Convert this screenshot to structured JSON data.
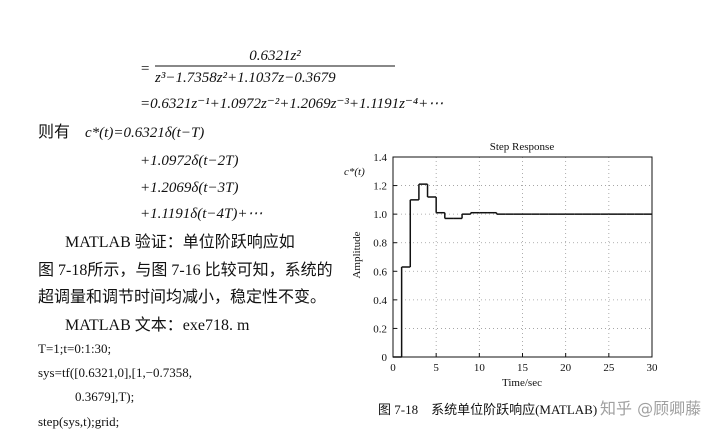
{
  "document": {
    "equation": {
      "equals": "=",
      "numerator": "0.6321z²",
      "denominator": "z³−1.7358z²+1.1037z−0.3679",
      "expansion": "=0.6321z⁻¹+1.0972z⁻²+1.2069z⁻³+1.1191z⁻⁴+⋯"
    },
    "then_label": "则有",
    "c_star": [
      "c*(t)=0.6321δ(t−T)",
      "+1.0972δ(t−2T)",
      "+1.2069δ(t−3T)",
      "+1.1191δ(t−4T)+⋯"
    ],
    "paragraph": [
      "MATLAB 验证：单位阶跃响应如",
      "图 7-18所示，与图 7-16 比较可知，系统的",
      "超调量和调节时间均减小，稳定性不变。"
    ],
    "code_title": "MATLAB 文本：exe718. m",
    "code": [
      "T=1;t=0:1:30;",
      "sys=tf([0.6321,0],[1,−0.7358,",
      "0.3679],T);",
      "step(sys,t);grid;"
    ]
  },
  "chart_data": {
    "type": "step",
    "title": "Step Response",
    "xlabel": "Time/sec",
    "ylabel": "Amplitude",
    "annotation": "c*(t)",
    "caption": "图 7-18　系统单位阶跃响应(MATLAB)",
    "x": [
      0,
      1,
      2,
      3,
      4,
      5,
      6,
      7,
      8,
      9,
      10,
      11,
      12,
      13,
      14,
      15,
      16,
      17,
      18,
      19,
      20,
      21,
      22,
      23,
      24,
      25,
      26,
      27,
      28,
      29,
      30
    ],
    "values": [
      0,
      0.63,
      1.1,
      1.21,
      1.12,
      1.01,
      0.97,
      0.97,
      1.0,
      1.01,
      1.01,
      1.01,
      1.0,
      1.0,
      1.0,
      1.0,
      1.0,
      1.0,
      1.0,
      1.0,
      1.0,
      1.0,
      1.0,
      1.0,
      1.0,
      1.0,
      1.0,
      1.0,
      1.0,
      1.0,
      1.0
    ],
    "color": "#111111",
    "xlim": [
      0,
      30
    ],
    "xticks": [
      0,
      5,
      10,
      15,
      20,
      25,
      30
    ],
    "ylim": [
      0,
      1.4
    ],
    "yticks": [
      0,
      0.2,
      0.4,
      0.6,
      0.8,
      {
        "value": 1,
        "label": "1.0"
      },
      1.2,
      1.4
    ],
    "grid": true
  },
  "watermark": "知乎 @顾卿藤"
}
